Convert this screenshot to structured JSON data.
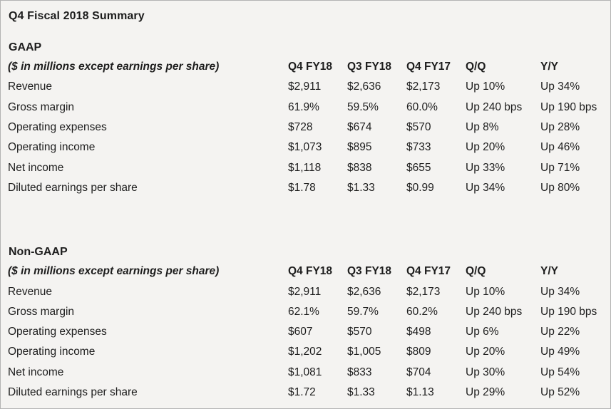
{
  "title": "Q4 Fiscal 2018 Summary",
  "colors": {
    "background": "#f4f3f1",
    "border": "#b3b3b3",
    "text": "#1d1d1d"
  },
  "sections": [
    {
      "heading": "GAAP",
      "caption": "($ in millions except earnings per share)",
      "columns": [
        "Q4 FY18",
        "Q3 FY18",
        "Q4 FY17",
        "Q/Q",
        "Y/Y"
      ],
      "rows": [
        {
          "label": "Revenue",
          "values": [
            "$2,911",
            "$2,636",
            "$2,173",
            "Up 10%",
            "Up 34%"
          ]
        },
        {
          "label": "Gross margin",
          "values": [
            "61.9%",
            "59.5%",
            "60.0%",
            "Up 240 bps",
            "Up 190 bps"
          ],
          "pct": true
        },
        {
          "label": "Operating expenses",
          "values": [
            "$728",
            "$674",
            "$570",
            "Up 8%",
            "Up 28%"
          ]
        },
        {
          "label": "Operating income",
          "values": [
            "$1,073",
            "$895",
            "$733",
            "Up 20%",
            "Up 46%"
          ]
        },
        {
          "label": "Net income",
          "values": [
            "$1,118",
            "$838",
            "$655",
            "Up 33%",
            "Up 71%"
          ]
        },
        {
          "label": "Diluted earnings per share",
          "values": [
            "$1.78",
            "$1.33",
            "$0.99",
            "Up 34%",
            "Up 80%"
          ]
        }
      ]
    },
    {
      "heading": "Non-GAAP",
      "caption": "($ in millions except earnings per share)",
      "columns": [
        "Q4 FY18",
        "Q3 FY18",
        "Q4 FY17",
        "Q/Q",
        "Y/Y"
      ],
      "rows": [
        {
          "label": "Revenue",
          "values": [
            "$2,911",
            "$2,636",
            "$2,173",
            "Up 10%",
            "Up 34%"
          ]
        },
        {
          "label": "Gross margin",
          "values": [
            "62.1%",
            "59.7%",
            "60.2%",
            "Up 240 bps",
            "Up 190 bps"
          ],
          "pct": true
        },
        {
          "label": "Operating expenses",
          "values": [
            "$607",
            "$570",
            "$498",
            "Up 6%",
            "Up 22%"
          ]
        },
        {
          "label": "Operating income",
          "values": [
            "$1,202",
            "$1,005",
            "$809",
            "Up 20%",
            "Up 49%"
          ]
        },
        {
          "label": "Net income",
          "values": [
            "$1,081",
            "$833",
            "$704",
            "Up 30%",
            "Up 54%"
          ]
        },
        {
          "label": "Diluted earnings per share",
          "values": [
            "$1.72",
            "$1.33",
            "$1.13",
            "Up 29%",
            "Up 52%"
          ]
        }
      ]
    }
  ]
}
